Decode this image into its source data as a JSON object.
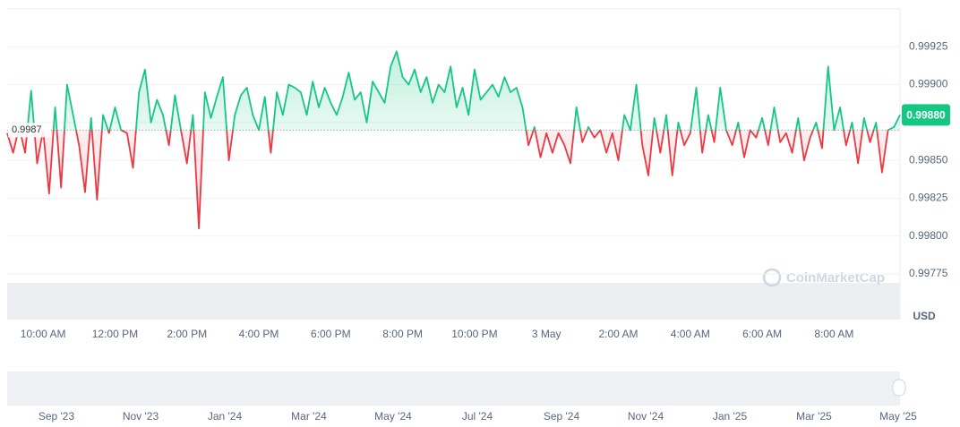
{
  "chart_data": {
    "type": "line",
    "categories": [
      null,
      null,
      null,
      null,
      null,
      null,
      "10:00 AM",
      null,
      null,
      null,
      null,
      null,
      null,
      null,
      null,
      null,
      null,
      null,
      "12:00 PM",
      null,
      null,
      null,
      null,
      null,
      null,
      null,
      null,
      null,
      null,
      null,
      "2:00 PM",
      null,
      null,
      null,
      null,
      null,
      null,
      null,
      null,
      null,
      null,
      null,
      "4:00 PM",
      null,
      null,
      null,
      null,
      null,
      null,
      null,
      null,
      null,
      null,
      null,
      "6:00 PM",
      null,
      null,
      null,
      null,
      null,
      null,
      null,
      null,
      null,
      null,
      null,
      "8:00 PM",
      null,
      null,
      null,
      null,
      null,
      null,
      null,
      null,
      null,
      null,
      null,
      "10:00 PM",
      null,
      null,
      null,
      null,
      null,
      null,
      null,
      null,
      null,
      null,
      null,
      "3 May",
      null,
      null,
      null,
      null,
      null,
      null,
      null,
      null,
      null,
      null,
      null,
      "2:00 AM",
      null,
      null,
      null,
      null,
      null,
      null,
      null,
      null,
      null,
      null,
      null,
      "4:00 AM",
      null,
      null,
      null,
      null,
      null,
      null,
      null,
      null,
      null,
      null,
      null,
      "6:00 AM",
      null,
      null,
      null,
      null,
      null,
      null,
      null,
      null,
      null,
      null,
      null,
      "8:00 AM",
      null,
      null,
      null,
      null,
      null,
      null,
      null,
      null,
      null,
      null,
      null
    ],
    "values": [
      0.99868,
      0.99855,
      0.99872,
      0.99855,
      0.99896,
      0.99848,
      0.9987,
      0.99828,
      0.99885,
      0.99832,
      0.999,
      0.9988,
      0.9986,
      0.99829,
      0.99878,
      0.99824,
      0.9988,
      0.99868,
      0.99885,
      0.9987,
      0.99868,
      0.99845,
      0.99895,
      0.9991,
      0.99875,
      0.9989,
      0.9988,
      0.9986,
      0.99893,
      0.9987,
      0.99848,
      0.9988,
      0.99805,
      0.99895,
      0.99878,
      0.99892,
      0.99905,
      0.9985,
      0.9988,
      0.99893,
      0.99898,
      0.9988,
      0.9987,
      0.99892,
      0.99855,
      0.99895,
      0.9988,
      0.999,
      0.99898,
      0.99895,
      0.9988,
      0.99902,
      0.99885,
      0.99898,
      0.99888,
      0.9988,
      0.99892,
      0.99908,
      0.9989,
      0.99895,
      0.99875,
      0.99902,
      0.99895,
      0.99888,
      0.99912,
      0.99922,
      0.99905,
      0.999,
      0.9991,
      0.99895,
      0.99905,
      0.99888,
      0.999,
      0.99895,
      0.99912,
      0.99885,
      0.99898,
      0.9988,
      0.9991,
      0.9989,
      0.99895,
      0.999,
      0.99892,
      0.99905,
      0.99895,
      0.99898,
      0.99885,
      0.9986,
      0.99872,
      0.99852,
      0.99868,
      0.99855,
      0.99868,
      0.9986,
      0.99848,
      0.99885,
      0.99862,
      0.99872,
      0.99865,
      0.9987,
      0.99855,
      0.99868,
      0.9985,
      0.9988,
      0.9987,
      0.999,
      0.9986,
      0.9984,
      0.99878,
      0.99855,
      0.9988,
      0.9984,
      0.99875,
      0.9986,
      0.99868,
      0.99898,
      0.99855,
      0.9988,
      0.99862,
      0.99898,
      0.9987,
      0.9986,
      0.99875,
      0.99852,
      0.9987,
      0.99865,
      0.99878,
      0.9986,
      0.99885,
      0.99862,
      0.99868,
      0.99855,
      0.99878,
      0.9985,
      0.99865,
      0.99875,
      0.99858,
      0.99912,
      0.9987,
      0.99885,
      0.9986,
      0.99875,
      0.99848,
      0.99878,
      0.99862,
      0.99875,
      0.99842,
      0.9987,
      0.99872,
      0.9988
    ],
    "baseline": 0.9987,
    "current_price": {
      "value": 0.9988,
      "label": "0.99880"
    },
    "up_color": "#16c784",
    "down_color": "#ea3943",
    "ylim": [
      0.99775,
      0.9995
    ],
    "yticks": [
      0.99775,
      {
        "value": 0.998,
        "label": "0.99800"
      },
      0.99825,
      {
        "value": 0.9985,
        "label": "0.99850"
      },
      0.99875,
      {
        "value": 0.999,
        "label": "0.99900"
      },
      0.99925
    ],
    "y_unit": "USD",
    "grid": true,
    "watermark": "CoinMarketCap",
    "navigator": {
      "labels": [
        "Sep '23",
        "Nov '23",
        "Jan '24",
        "Mar '24",
        "May '24",
        "Jul '24",
        "Sep '24",
        "Nov '24",
        "Jan '25",
        "Mar '25",
        "May '25"
      ]
    }
  }
}
